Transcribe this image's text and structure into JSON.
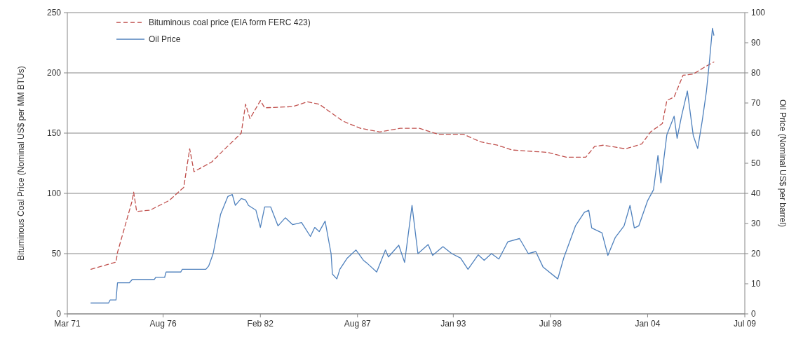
{
  "chart_data": {
    "type": "line",
    "xlabel": null,
    "ylabel": "Bituminous Coal Price (Nominal US$ per MM BTUs)",
    "y2label": "Oil Price (Nominal US$ per barrel)",
    "xlim": [
      "1971-03",
      "2009-07"
    ],
    "xticks": [
      {
        "value": "1971-03",
        "label": "Mar 71"
      },
      {
        "value": "1976-08",
        "label": "Aug 76"
      },
      {
        "value": "1982-02",
        "label": "Feb 82"
      },
      {
        "value": "1987-08",
        "label": "Aug 87"
      },
      {
        "value": "1993-01",
        "label": "Jan 93"
      },
      {
        "value": "1998-07",
        "label": "Jul 98"
      },
      {
        "value": "2004-01",
        "label": "Jan 04"
      },
      {
        "value": "2009-07",
        "label": "Jul 09"
      }
    ],
    "ylim": [
      0,
      250
    ],
    "yticks": [
      0,
      50,
      100,
      150,
      200,
      250
    ],
    "y2lim": [
      0,
      100
    ],
    "y2ticks": [
      0,
      10,
      20,
      30,
      40,
      50,
      60,
      70,
      80,
      90,
      100
    ],
    "grid": "y",
    "legend": "top left",
    "series": [
      {
        "name": "Bituminous coal price (EIA form FERC 423)",
        "color": "#c0504d",
        "line_style": "dashed",
        "x": [
          "1972-07",
          "1973-12",
          "1974-01",
          "1974-11",
          "1974-12",
          "1975-02",
          "1975-11",
          "1976-12",
          "1977-10",
          "1978-02",
          "1978-05",
          "1979-05",
          "1980-02",
          "1981-01",
          "1981-04",
          "1981-07",
          "1982-02",
          "1982-05",
          "1983-12",
          "1984-10",
          "1985-06",
          "1986-10",
          "1987-10",
          "1988-11",
          "1990-01",
          "1991-02",
          "1992-03",
          "1993-08",
          "1994-07",
          "1995-07",
          "1996-05",
          "1998-05",
          "1999-06",
          "2000-07",
          "2001-01",
          "2001-07",
          "2002-10",
          "2003-09",
          "2004-03",
          "2004-11",
          "2005-02",
          "2005-07",
          "2006-01",
          "2006-08",
          "2007-04",
          "2007-10"
        ],
        "values": [
          37,
          43,
          51,
          94,
          101,
          85,
          86,
          94,
          105,
          137,
          118,
          126,
          137,
          150,
          174,
          162,
          177,
          171,
          172,
          176,
          174,
          160,
          154,
          151,
          154,
          154,
          149,
          149,
          143,
          140,
          136,
          134,
          130,
          130,
          139,
          140,
          137,
          141,
          151,
          158,
          177,
          180,
          198,
          199,
          205,
          209
        ]
      },
      {
        "name": "Oil Price",
        "color": "#4f81bd",
        "line_style": "solid",
        "axis": "y2",
        "x": [
          "1972-07",
          "1973-07",
          "1973-08",
          "1973-12",
          "1974-01",
          "1974-09",
          "1974-11",
          "1976-02",
          "1976-03",
          "1976-09",
          "1976-10",
          "1977-08",
          "1977-09",
          "1979-01",
          "1979-03",
          "1979-06",
          "1979-11",
          "1980-04",
          "1980-07",
          "1980-09",
          "1981-01",
          "1981-04",
          "1981-06",
          "1981-11",
          "1982-02",
          "1982-05",
          "1982-09",
          "1983-02",
          "1983-07",
          "1983-12",
          "1984-06",
          "1984-12",
          "1985-03",
          "1985-06",
          "1985-10",
          "1986-02",
          "1986-03",
          "1986-06",
          "1986-08",
          "1987-01",
          "1987-07",
          "1987-12",
          "1988-03",
          "1988-09",
          "1989-03",
          "1989-05",
          "1989-12",
          "1990-04",
          "1990-09",
          "1991-01",
          "1991-08",
          "1991-11",
          "1992-06",
          "1992-12",
          "1993-06",
          "1993-11",
          "1994-06",
          "1994-10",
          "1995-03",
          "1995-08",
          "1996-02",
          "1996-10",
          "1997-04",
          "1997-09",
          "1998-02",
          "1998-12",
          "1999-04",
          "1999-12",
          "2000-06",
          "2000-09",
          "2000-11",
          "2001-06",
          "2001-10",
          "2002-03",
          "2002-09",
          "2003-01",
          "2003-04",
          "2003-07",
          "2004-01",
          "2004-05",
          "2004-08",
          "2004-10",
          "2005-02",
          "2005-07",
          "2005-09",
          "2005-12",
          "2006-04",
          "2006-08",
          "2006-11",
          "2007-02",
          "2007-05",
          "2007-07",
          "2007-09",
          "2007-10"
        ],
        "values": [
          3.6,
          3.6,
          4.6,
          4.6,
          10.3,
          10.3,
          11.4,
          11.4,
          12.1,
          12.1,
          13.9,
          13.9,
          14.8,
          14.8,
          15.9,
          20,
          33,
          39,
          39.6,
          36,
          38.3,
          37.8,
          36,
          34.4,
          28.7,
          35.5,
          35.5,
          29.2,
          31.9,
          29.6,
          30.3,
          25.7,
          28.7,
          27.3,
          30.8,
          20,
          13.2,
          11.6,
          14.8,
          18.5,
          21.2,
          17.8,
          16.6,
          13.9,
          21.2,
          18.9,
          22.8,
          17.1,
          36,
          20,
          23,
          19.4,
          22.3,
          20,
          18.5,
          14.8,
          19.6,
          17.8,
          20,
          18.2,
          23.9,
          25,
          20,
          20.7,
          15.5,
          11.6,
          18.5,
          29.2,
          33.7,
          34.4,
          28.5,
          26.9,
          19.4,
          25.3,
          29.2,
          36,
          28.5,
          29.2,
          37.6,
          41.2,
          52.6,
          43.5,
          59.5,
          65.6,
          58.3,
          65.6,
          74,
          59.2,
          54.9,
          64,
          74,
          83.8,
          94.8,
          92.5
        ]
      }
    ]
  }
}
